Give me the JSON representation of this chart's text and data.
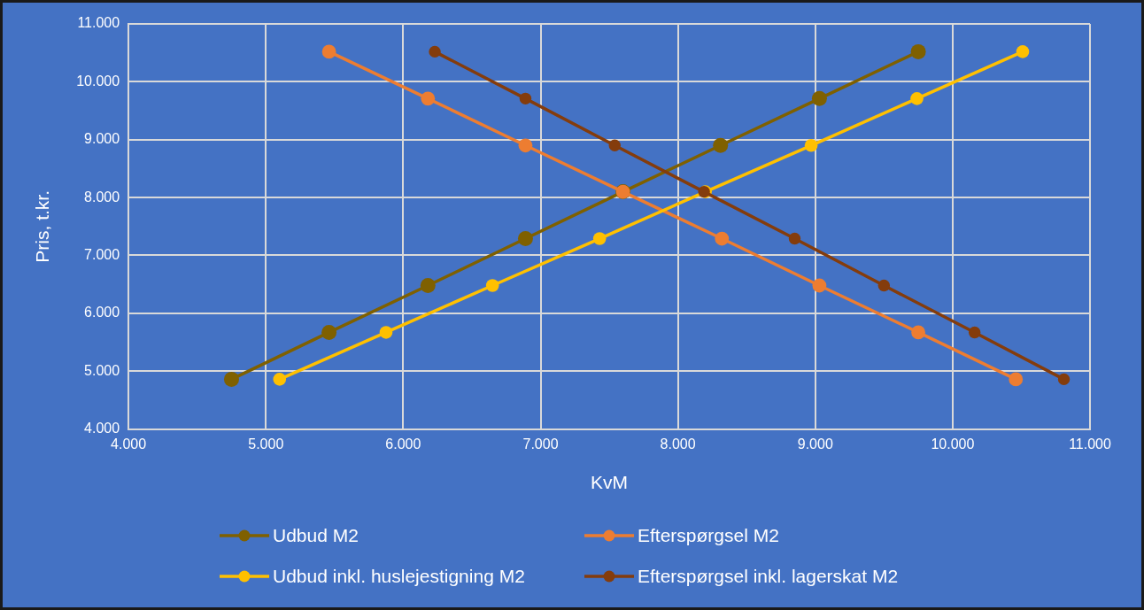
{
  "chart_data": {
    "type": "line",
    "xlabel": "KvM",
    "ylabel": "Pris, t.kr.",
    "xlim": [
      4000,
      11000
    ],
    "xticks": [
      {
        "value": 4000,
        "label": "4.000"
      },
      {
        "value": 5000,
        "label": "5.000"
      },
      {
        "value": 6000,
        "label": "6.000"
      },
      {
        "value": 7000,
        "label": "7.000"
      },
      {
        "value": 8000,
        "label": "8.000"
      },
      {
        "value": 9000,
        "label": "9.000"
      },
      {
        "value": 10000,
        "label": "10.000"
      },
      {
        "value": 11000,
        "label": "11.000"
      }
    ],
    "ylim": [
      4000,
      11000
    ],
    "yticks": [
      {
        "value": 4000,
        "label": "4.000"
      },
      {
        "value": 5000,
        "label": "5.000"
      },
      {
        "value": 6000,
        "label": "6.000"
      },
      {
        "value": 7000,
        "label": "7.000"
      },
      {
        "value": 8000,
        "label": "8.000"
      },
      {
        "value": 9000,
        "label": "9.000"
      },
      {
        "value": 10000,
        "label": "10.000"
      },
      {
        "value": 11000,
        "label": "11.000"
      }
    ],
    "grid": true,
    "legend": "bottom",
    "marker": "circle",
    "line_style": "solid",
    "series": [
      {
        "name": "Udbud M2",
        "color": "#7f6000",
        "x": [
          4750,
          5460,
          6180,
          6890,
          7600,
          8310,
          9030,
          9750
        ],
        "values": [
          4860,
          5670,
          6480,
          7290,
          8100,
          8900,
          9710,
          10520
        ]
      },
      {
        "name": "Efterspørgsel M2",
        "color": "#ed7d31",
        "x": [
          5460,
          6180,
          6890,
          7600,
          8320,
          9030,
          9750,
          10460
        ],
        "values": [
          10520,
          9710,
          8900,
          8100,
          7290,
          6480,
          5670,
          4860
        ]
      },
      {
        "name": "Udbud inkl. huslejestigning M2",
        "color": "#ffc000",
        "x": [
          5100,
          5875,
          6650,
          7430,
          8200,
          8970,
          9740,
          10510
        ],
        "values": [
          4860,
          5670,
          6480,
          7290,
          8100,
          8900,
          9710,
          10520
        ]
      },
      {
        "name": "Efterspørgsel inkl. lagerskat M2",
        "color": "#843c0c",
        "x": [
          6230,
          6890,
          7540,
          8190,
          8850,
          9500,
          10160,
          10810
        ],
        "values": [
          10520,
          9710,
          8900,
          8100,
          7290,
          6480,
          5670,
          4860
        ]
      }
    ]
  }
}
